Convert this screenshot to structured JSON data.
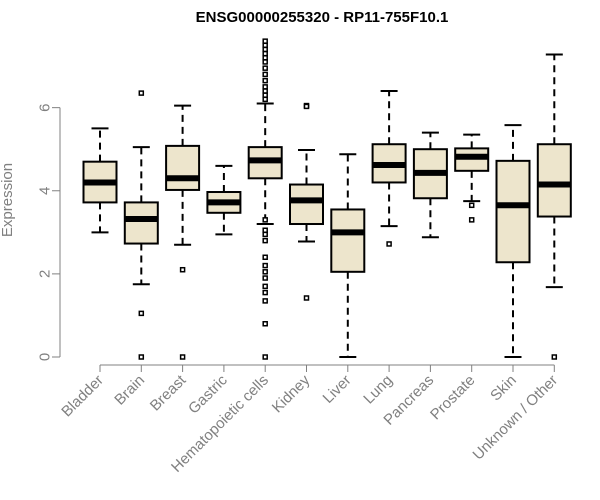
{
  "chart_data": {
    "type": "boxplot",
    "title": "ENSG00000255320 - RP11-755F10.1",
    "xlabel": "",
    "ylabel": "Expression",
    "ylim": [
      0,
      7.7
    ],
    "yticks": [
      0,
      2,
      4,
      6
    ],
    "box_fill": "#ede5cc",
    "categories": [
      "Bladder",
      "Brain",
      "Breast",
      "Gastric",
      "Hematopoietic cells",
      "Kidney",
      "Liver",
      "Lung",
      "Pancreas",
      "Prostate",
      "Skin",
      "Unknown / Other"
    ],
    "boxes": [
      {
        "min": 3.0,
        "q1": 3.72,
        "median": 4.2,
        "q3": 4.7,
        "max": 5.5,
        "outliers": []
      },
      {
        "min": 1.75,
        "q1": 2.73,
        "median": 3.32,
        "q3": 3.72,
        "max": 5.05,
        "outliers": [
          6.35,
          1.05,
          0.0
        ]
      },
      {
        "min": 2.7,
        "q1": 4.02,
        "median": 4.3,
        "q3": 5.08,
        "max": 6.05,
        "outliers": [
          2.1,
          0.0
        ]
      },
      {
        "min": 2.95,
        "q1": 3.47,
        "median": 3.72,
        "q3": 3.97,
        "max": 4.6,
        "outliers": []
      },
      {
        "min": 3.2,
        "q1": 4.3,
        "median": 4.73,
        "q3": 5.05,
        "max": 6.1,
        "outliers": [
          7.6,
          7.5,
          7.4,
          7.3,
          7.2,
          7.1,
          6.95,
          6.8,
          6.65,
          6.5,
          6.4,
          6.3,
          6.2,
          3.3,
          3.05,
          2.95,
          2.8,
          2.4,
          2.2,
          2.05,
          1.9,
          1.7,
          1.55,
          1.35,
          0.8,
          0.0
        ]
      },
      {
        "min": 2.78,
        "q1": 3.2,
        "median": 3.77,
        "q3": 4.15,
        "max": 4.98,
        "outliers": [
          6.05,
          6.03,
          1.42
        ]
      },
      {
        "min": 0.0,
        "q1": 2.05,
        "median": 3.0,
        "q3": 3.55,
        "max": 4.88,
        "outliers": []
      },
      {
        "min": 3.15,
        "q1": 4.2,
        "median": 4.62,
        "q3": 5.12,
        "max": 6.4,
        "outliers": [
          2.72
        ]
      },
      {
        "min": 2.88,
        "q1": 3.82,
        "median": 4.43,
        "q3": 5.0,
        "max": 5.4,
        "outliers": []
      },
      {
        "min": 3.75,
        "q1": 4.48,
        "median": 4.82,
        "q3": 5.02,
        "max": 5.35,
        "outliers": [
          3.65,
          3.3
        ]
      },
      {
        "min": 0.0,
        "q1": 2.28,
        "median": 3.65,
        "q3": 4.72,
        "max": 5.58,
        "outliers": []
      },
      {
        "min": 1.68,
        "q1": 3.38,
        "median": 4.15,
        "q3": 5.12,
        "max": 7.28,
        "outliers": [
          0.0
        ]
      }
    ]
  }
}
